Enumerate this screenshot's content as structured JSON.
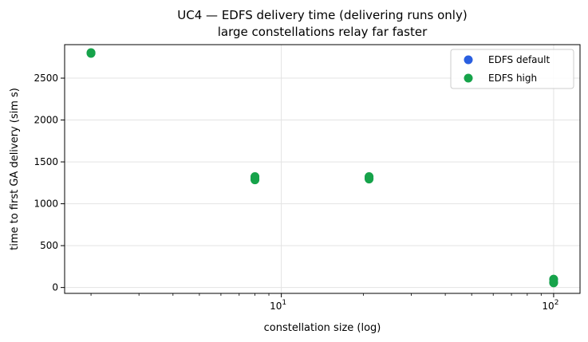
{
  "chart_data": {
    "type": "scatter",
    "title": "UC4 — EDFS delivery time (delivering runs only)",
    "subtitle": "large constellations relay far faster",
    "xlabel": "constellation size (log)",
    "ylabel": "time to first GA delivery (sim s)",
    "xscale": "log",
    "xlim": [
      1.6,
      125
    ],
    "ylim": [
      -70,
      2900
    ],
    "grid": true,
    "legend_position": "top-right",
    "x_ticks": [
      {
        "value": 10,
        "label": "10",
        "sup": "1"
      },
      {
        "value": 100,
        "label": "10",
        "sup": "2"
      }
    ],
    "y_ticks": [
      {
        "value": 0,
        "label": "0"
      },
      {
        "value": 500,
        "label": "500"
      },
      {
        "value": 1000,
        "label": "1000"
      },
      {
        "value": 1500,
        "label": "1500"
      },
      {
        "value": 2000,
        "label": "2000"
      },
      {
        "value": 2500,
        "label": "2500"
      }
    ],
    "series": [
      {
        "name": "EDFS default",
        "color": "#2a5fe0",
        "points": [
          {
            "x": 2,
            "y": 2800
          },
          {
            "x": 8,
            "y": 1290
          },
          {
            "x": 8,
            "y": 1320
          },
          {
            "x": 21,
            "y": 1300
          },
          {
            "x": 21,
            "y": 1320
          },
          {
            "x": 100,
            "y": 60
          },
          {
            "x": 100,
            "y": 95
          }
        ]
      },
      {
        "name": "EDFS high",
        "color": "#16a34a",
        "points": [
          {
            "x": 2,
            "y": 2795
          },
          {
            "x": 2,
            "y": 2805
          },
          {
            "x": 8,
            "y": 1285
          },
          {
            "x": 8,
            "y": 1300
          },
          {
            "x": 8,
            "y": 1325
          },
          {
            "x": 21,
            "y": 1295
          },
          {
            "x": 21,
            "y": 1305
          },
          {
            "x": 21,
            "y": 1325
          },
          {
            "x": 100,
            "y": 55
          },
          {
            "x": 100,
            "y": 65
          },
          {
            "x": 100,
            "y": 100
          }
        ]
      }
    ]
  }
}
